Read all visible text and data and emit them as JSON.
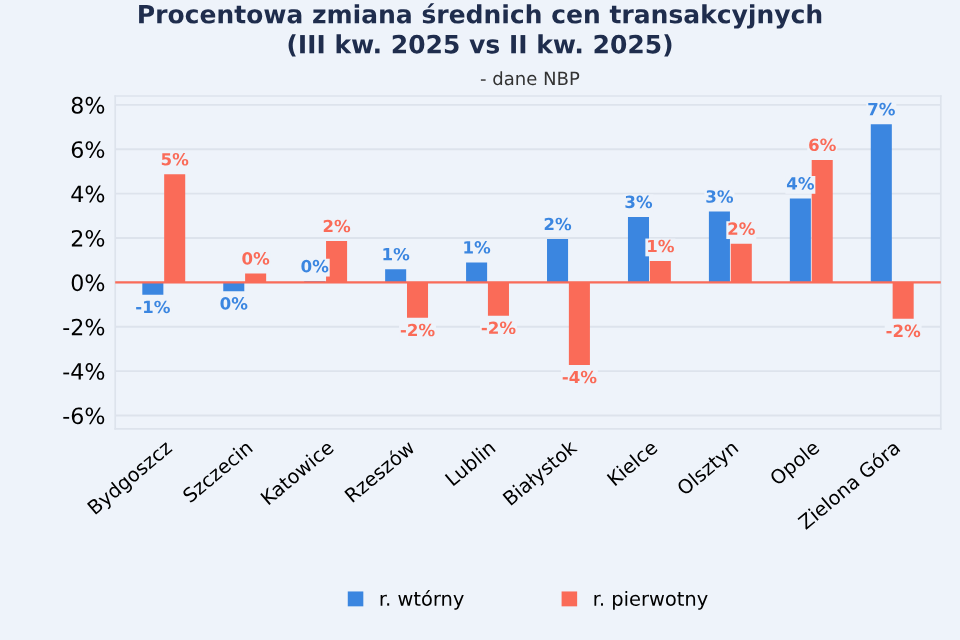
{
  "chart_data": {
    "type": "bar",
    "title": "Procentowa zmiana średnich cen transakcyjnych\n(III kw. 2025 vs II kw. 2025)",
    "subtitle": "- dane NBP",
    "categories": [
      "Bydgoszcz",
      "Szczecin",
      "Katowice",
      "Rzeszów",
      "Lublin",
      "Białystok",
      "Kielce",
      "Olsztyn",
      "Opole",
      "Zielona Góra"
    ],
    "series": [
      {
        "name": "r. wtórny",
        "color": "#3b86e0",
        "values": [
          -0.56,
          -0.4,
          0.05,
          0.59,
          0.9,
          1.95,
          2.95,
          3.19,
          3.78,
          7.13
        ],
        "value_labels": [
          "-1%",
          "0%",
          "0%",
          "1%",
          "1%",
          "2%",
          "3%",
          "3%",
          "4%",
          "7%"
        ]
      },
      {
        "name": "r. pierwotny",
        "color": "#fa6b58",
        "values": [
          4.87,
          0.4,
          1.86,
          -1.6,
          -1.5,
          -3.72,
          0.96,
          1.74,
          5.52,
          -1.64
        ],
        "value_labels": [
          "5%",
          "0%",
          "2%",
          "-2%",
          "-2%",
          "-4%",
          "1%",
          "2%",
          "6%",
          "-2%"
        ]
      }
    ],
    "ylim": [
      -6.6,
      8.4
    ],
    "yticks": [
      {
        "value": 8,
        "label": "8%"
      },
      {
        "value": 6,
        "label": "6%"
      },
      {
        "value": 4,
        "label": "4%"
      },
      {
        "value": 2,
        "label": "2%"
      },
      {
        "value": 0,
        "label": "0%"
      },
      {
        "value": -2,
        "label": "-2%"
      },
      {
        "value": -4,
        "label": "-4%"
      },
      {
        "value": -6,
        "label": "-6%"
      }
    ],
    "ref_lines": [
      {
        "axis": "y",
        "value": 0,
        "label": null,
        "color": "#fa6b58"
      }
    ],
    "grid": "y",
    "legend": "bottom"
  }
}
